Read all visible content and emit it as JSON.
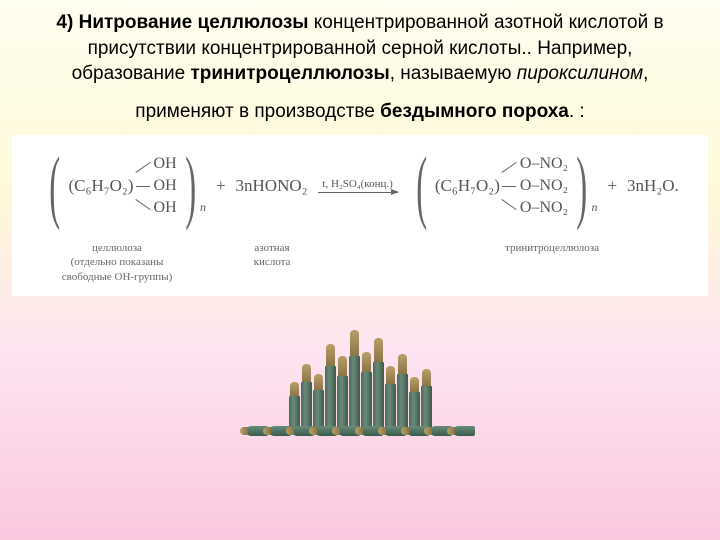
{
  "heading": {
    "part1": "4) Нитрование целлюлозы",
    "part2": " концентрированной азотной кислотой в присутствии концентрированной серной кислоты.. Например, образование ",
    "part3": "тринитроцеллюлозы",
    "part4": ", называемую ",
    "part5": "пироксилином",
    "part6": ","
  },
  "subheading": {
    "text1": "применяют в производстве ",
    "bold": "бездымного пороха",
    "text2": ". :"
  },
  "equation": {
    "left_formula": "(C₆H₇O₂)",
    "left_branches": [
      "OH",
      "OH",
      "OH"
    ],
    "plus1": "+",
    "reagent": "3nHONO₂",
    "arrow_condition": "t, H₂SO₄(конц.)",
    "right_formula": "(C₆H₇O₂)",
    "right_branches": [
      "O–NO₂",
      "O–NO₂",
      "O–NO₂"
    ],
    "plus2": "+",
    "product2": "3nH₂O.",
    "sub_n": "n"
  },
  "labels": {
    "left": "целлюлоза\n(отдельно показаны\nсвободные OH-группы)",
    "left_line1": "целлюлоза",
    "left_line2": "(отдельно показаны",
    "left_line3": "свободные OH-группы)",
    "middle": "азотная\nкислота",
    "middle_line1": "азотная",
    "middle_line2": "кислота",
    "right": "тринитроцеллюлоза"
  },
  "bullets": {
    "heights": [
      38,
      52,
      44,
      68,
      58,
      78,
      62,
      72,
      50,
      60,
      42,
      48
    ],
    "tip_heights": [
      14,
      18,
      16,
      22,
      20,
      26,
      20,
      24,
      18,
      20,
      15,
      17
    ],
    "colors": {
      "tip": "#9a8458",
      "case": "#4a6a5a"
    }
  }
}
